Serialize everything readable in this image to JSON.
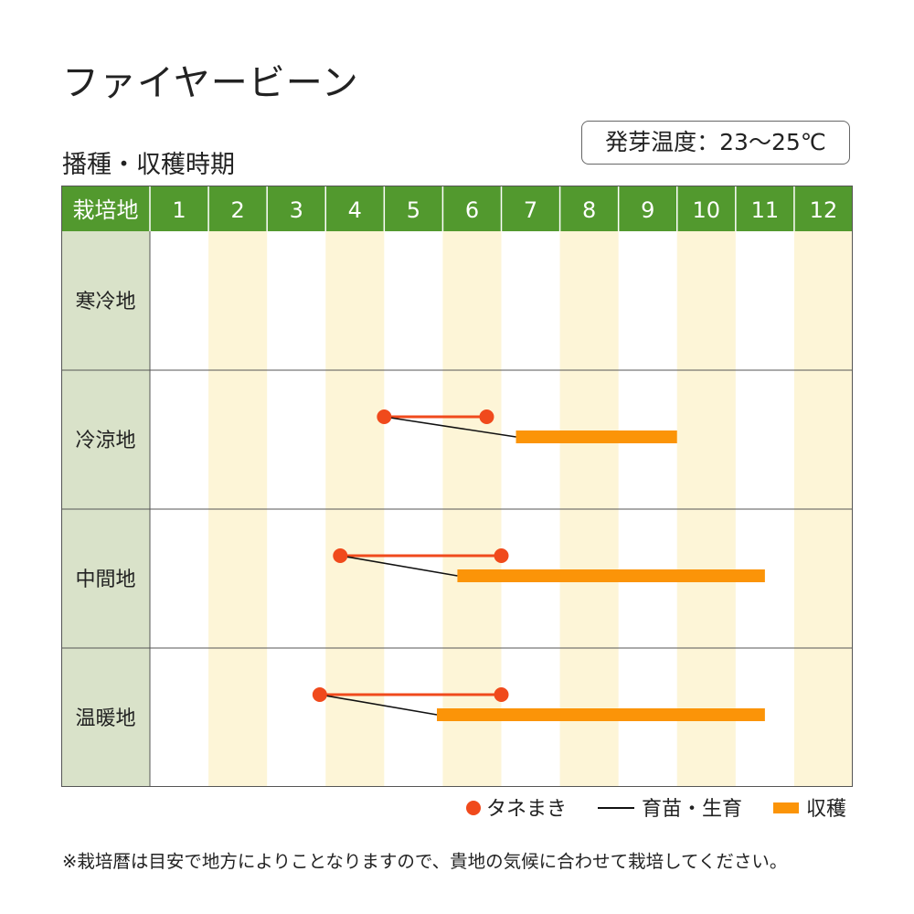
{
  "title": "ファイヤービーン",
  "subtitle": "播種・収穫時期",
  "temperature_label": "発芽温度：23〜25℃",
  "colors": {
    "header_green": "#52992e",
    "region_col": "#d9e2c9",
    "alt_col": "#fdf5d7",
    "sowing": "#f04a1c",
    "harvest": "#fb9408",
    "growth": "#111111"
  },
  "chart_data": {
    "type": "table",
    "header": "栽培地",
    "months": [
      "1",
      "2",
      "3",
      "4",
      "5",
      "6",
      "7",
      "8",
      "9",
      "10",
      "11",
      "12"
    ],
    "rows": [
      {
        "region": "寒冷地",
        "sowing": null,
        "harvest": null
      },
      {
        "region": "冷涼地",
        "sowing": [
          5.0,
          6.75
        ],
        "harvest": [
          7.25,
          10.0
        ]
      },
      {
        "region": "中間地",
        "sowing": [
          4.25,
          7.0
        ],
        "harvest": [
          6.25,
          11.5
        ]
      },
      {
        "region": "温暖地",
        "sowing": [
          3.9,
          7.0
        ],
        "harvest": [
          5.9,
          11.5
        ]
      }
    ]
  },
  "legend": {
    "sowing": "タネまき",
    "growth": "育苗・生育",
    "harvest": "収穫"
  },
  "note": "※栽培暦は目安で地方によりことなりますので、貴地の気候に合わせて栽培してください。"
}
